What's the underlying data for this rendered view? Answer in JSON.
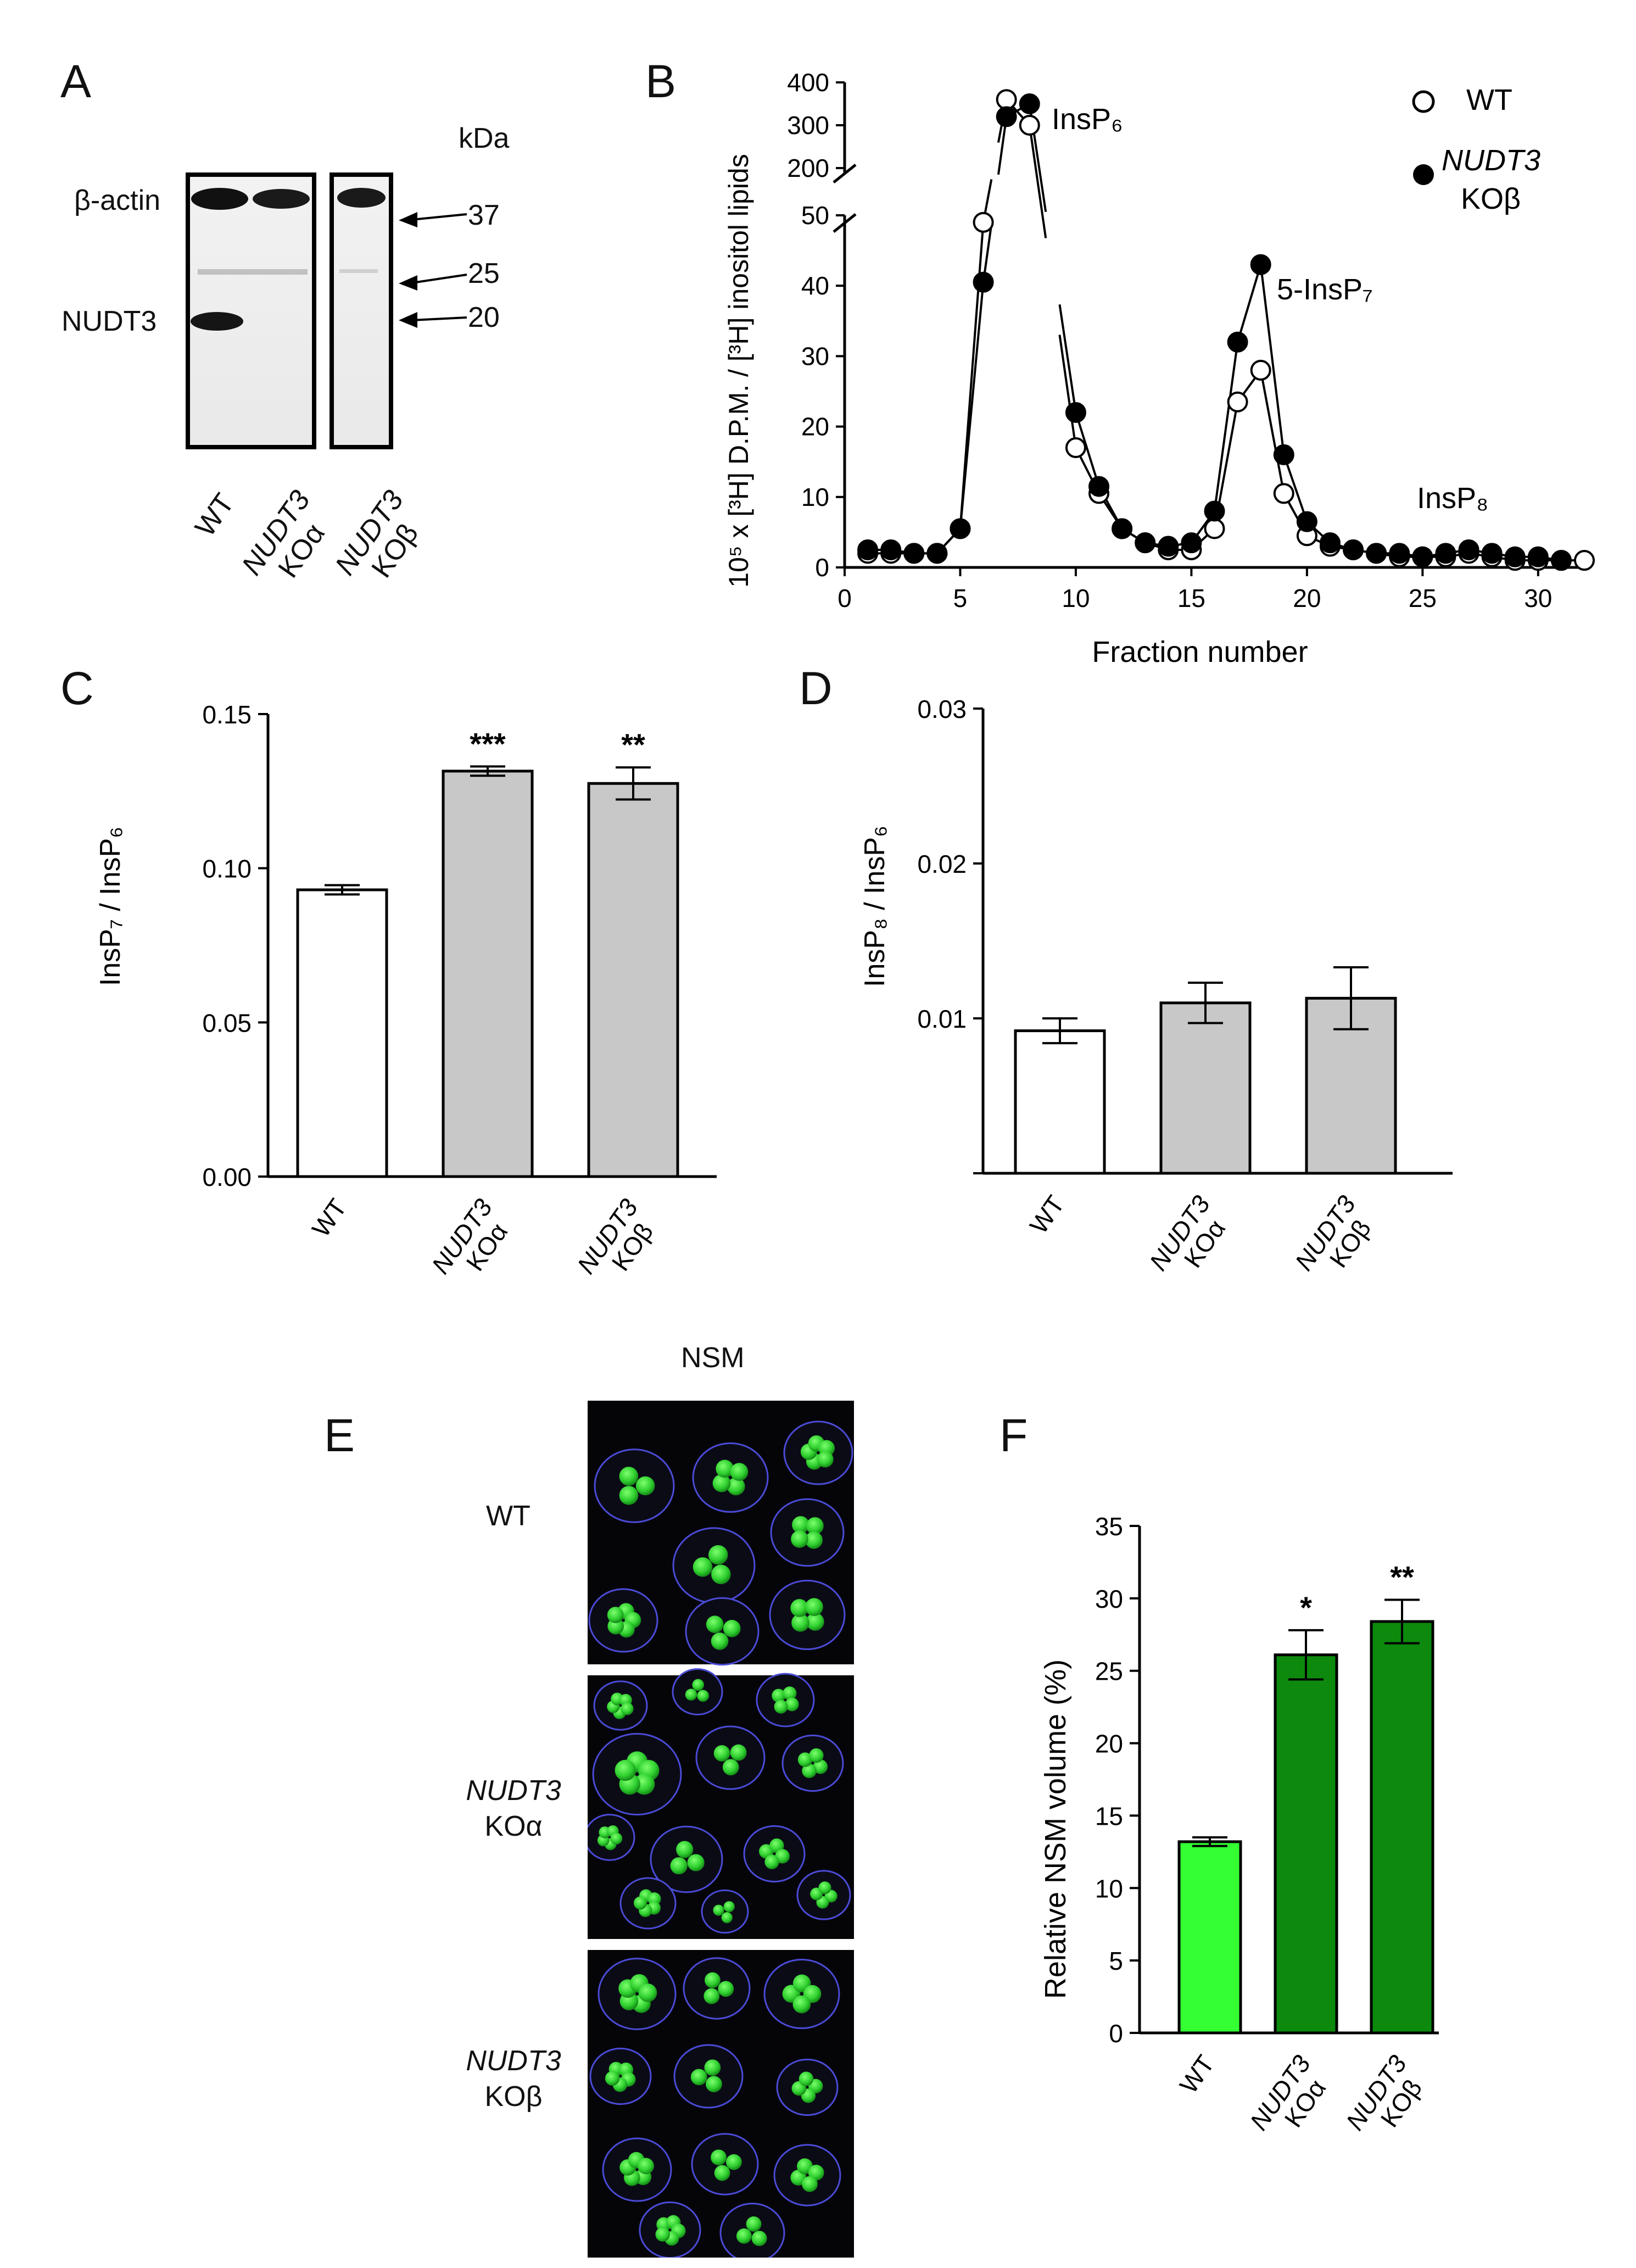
{
  "panels": {
    "A": {
      "letter": "A",
      "kda_label": "kDa",
      "band_labels": [
        "β-actin",
        "NUDT3"
      ],
      "markers": [
        "37",
        "25",
        "20"
      ],
      "lanes": [
        {
          "line1": "WT",
          "line2": ""
        },
        {
          "line1": "NUDT3",
          "line2": "KOα"
        },
        {
          "line1": "NUDT3",
          "line2": "KOβ"
        }
      ]
    },
    "B": {
      "letter": "B",
      "xlabel": "Fraction number",
      "ylabel": "10⁵ x [³H] D.P.M. / [³H] inositol lipids",
      "legend": {
        "wt": "WT",
        "ko_line1": "NUDT3",
        "ko_line2": "KOβ"
      },
      "annotations": {
        "insp6": "InsP₆",
        "insp7": "5-InsP₇",
        "insp8": "InsP₈"
      }
    },
    "C": {
      "letter": "C",
      "ylabel": "InsP₇ / InsP₆"
    },
    "D": {
      "letter": "D",
      "ylabel": "InsP₈ / InsP₆"
    },
    "E": {
      "letter": "E",
      "title": "NSM",
      "rows": [
        {
          "line1": "WT",
          "line2": ""
        },
        {
          "line1": "NUDT3",
          "line2": "KOα"
        },
        {
          "line1": "NUDT3",
          "line2": "KOβ"
        }
      ]
    },
    "F": {
      "letter": "F",
      "ylabel": "Relative NSM volume (%)"
    }
  },
  "colors": {
    "white_bar": "#ffffff",
    "grey_bar": "#c8c8c8",
    "green_light": "#33ff33",
    "green_dark": "#0d8a0d",
    "nucleus_green": "#3ad93a",
    "cell_border": "#4b4bd8"
  },
  "chart_data": [
    {
      "panel": "B",
      "type": "line",
      "xlabel": "Fraction number",
      "ylabel": "10⁵ x [³H] D.P.M. / [³H] inositol lipids",
      "xlim": [
        0,
        32
      ],
      "ylim": [
        0,
        400
      ],
      "axis_break": [
        50,
        200
      ],
      "xticks": [
        0,
        5,
        10,
        15,
        20,
        25,
        30
      ],
      "yticks_lower": [
        0,
        10,
        20,
        30,
        40,
        50
      ],
      "yticks_upper": [
        200,
        300,
        400
      ],
      "series": [
        {
          "name": "WT",
          "marker": "open-circle",
          "x": [
            1,
            2,
            3,
            4,
            5,
            6,
            7,
            8,
            10,
            11,
            12,
            13,
            14,
            15,
            16,
            17,
            18,
            19,
            20,
            21,
            22,
            23,
            24,
            25,
            26,
            27,
            28,
            29,
            30,
            31,
            32
          ],
          "y": [
            2,
            2,
            2,
            2,
            5.5,
            49,
            360,
            300,
            17,
            10.5,
            5.5,
            3.5,
            2.5,
            2.5,
            5.5,
            23.5,
            28,
            10.5,
            4.5,
            3,
            2.5,
            2,
            1.5,
            1.5,
            1.5,
            2,
            1.5,
            1,
            1,
            1,
            1
          ]
        },
        {
          "name": "NUDT3 KOβ",
          "marker": "filled-circle",
          "x": [
            1,
            2,
            3,
            4,
            5,
            6,
            7,
            8,
            10,
            11,
            12,
            13,
            14,
            15,
            16,
            17,
            18,
            19,
            20,
            21,
            22,
            23,
            24,
            25,
            26,
            27,
            28,
            29,
            30,
            31
          ],
          "y": [
            2.5,
            2.5,
            2,
            2,
            5.5,
            40.5,
            320,
            350,
            22,
            11.5,
            5.5,
            3.5,
            3,
            3.5,
            8,
            32,
            43,
            16,
            6.5,
            3.5,
            2.5,
            2,
            2,
            1.5,
            2,
            2.5,
            2,
            1.5,
            1.5,
            1
          ]
        }
      ]
    },
    {
      "panel": "C",
      "type": "bar",
      "ylabel": "InsP₇ / InsP₆",
      "ylim": [
        0,
        0.15
      ],
      "yticks": [
        "0.00",
        "0.05",
        "0.10",
        "0.15"
      ],
      "categories": [
        {
          "line1": "WT",
          "line2": ""
        },
        {
          "line1": "NUDT3",
          "line2": "KOα"
        },
        {
          "line1": "NUDT3",
          "line2": "KOβ"
        }
      ],
      "values": [
        0.093,
        0.1315,
        0.1275
      ],
      "errors": [
        0.0015,
        0.0015,
        0.0052
      ],
      "significance": [
        "",
        "***",
        "**"
      ],
      "fills": [
        "#ffffff",
        "#c8c8c8",
        "#c8c8c8"
      ]
    },
    {
      "panel": "D",
      "type": "bar",
      "ylabel": "InsP₈ / InsP₆",
      "ylim": [
        0,
        0.03
      ],
      "yticks": [
        "",
        "0.01",
        "0.02",
        "0.03"
      ],
      "categories": [
        {
          "line1": "WT",
          "line2": ""
        },
        {
          "line1": "NUDT3",
          "line2": "KOα"
        },
        {
          "line1": "NUDT3",
          "line2": "KOβ"
        }
      ],
      "values": [
        0.0092,
        0.011,
        0.0113
      ],
      "errors": [
        0.0008,
        0.0013,
        0.002
      ],
      "significance": [
        "",
        "",
        ""
      ],
      "fills": [
        "#ffffff",
        "#c8c8c8",
        "#c8c8c8"
      ]
    },
    {
      "panel": "F",
      "type": "bar",
      "ylabel": "Relative NSM volume (%)",
      "ylim": [
        0,
        35
      ],
      "yticks": [
        "0",
        "5",
        "10",
        "15",
        "20",
        "25",
        "30",
        "35"
      ],
      "categories": [
        {
          "line1": "WT",
          "line2": ""
        },
        {
          "line1": "NUDT3",
          "line2": "KOα"
        },
        {
          "line1": "NUDT3",
          "line2": "KOβ"
        }
      ],
      "values": [
        13.2,
        26.1,
        28.4
      ],
      "errors": [
        0.3,
        1.7,
        1.5
      ],
      "significance": [
        "",
        "*",
        "**"
      ],
      "fills": [
        "#33ff33",
        "#0d8a0d",
        "#0d8a0d"
      ]
    }
  ]
}
